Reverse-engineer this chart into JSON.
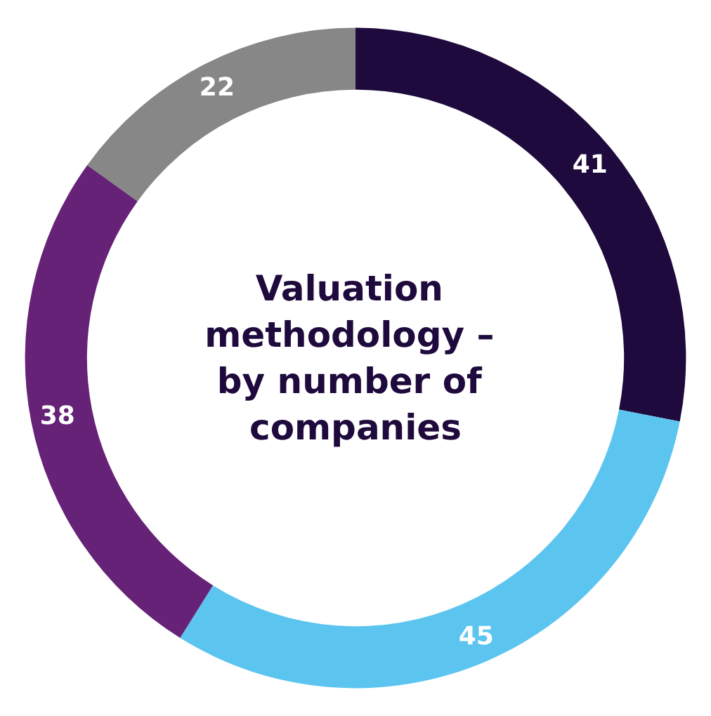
{
  "chart_data": {
    "type": "donut",
    "title": "Valuation methodology – by number of companies",
    "categories": [
      null,
      null,
      null,
      null
    ],
    "values": [
      41,
      45,
      38,
      22
    ],
    "colors": [
      "#1e0a3c",
      "#5bc5f0",
      "#662277",
      "#878787"
    ],
    "data_labels": true
  }
}
